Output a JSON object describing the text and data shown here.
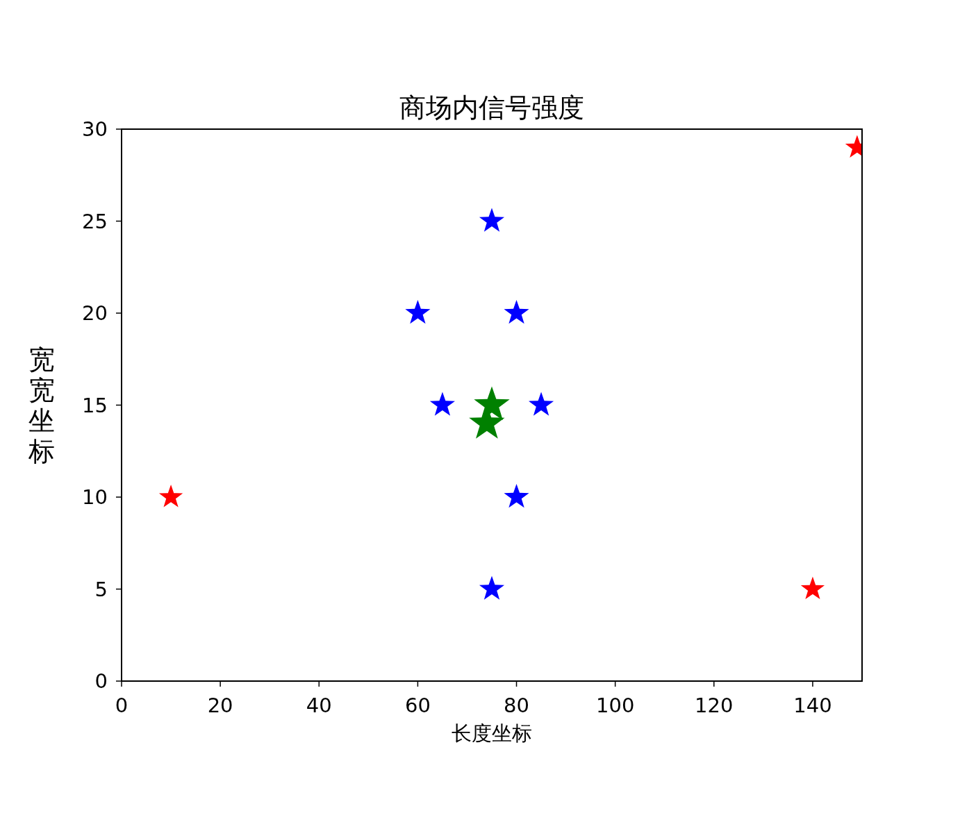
{
  "chart_data": {
    "type": "scatter",
    "title": "商场内信号强度",
    "xlabel": "长度坐标",
    "ylabel": "宽宽坐标",
    "marker": "star",
    "series": [
      {
        "color": "#0000ff",
        "x": [
          75,
          60,
          80,
          65,
          85,
          80,
          75
        ],
        "values": [
          25,
          20,
          20,
          15,
          15,
          10,
          5
        ]
      },
      {
        "color": "#ff0000",
        "x": [
          10,
          140,
          149
        ],
        "values": [
          10,
          5,
          29
        ]
      },
      {
        "color": "#008000",
        "x": [
          75,
          74
        ],
        "values": [
          15,
          14
        ]
      }
    ],
    "xlim": [
      0,
      150
    ],
    "ylim": [
      0,
      30
    ],
    "xticks": [
      0,
      20,
      40,
      60,
      80,
      100,
      120,
      140
    ],
    "yticks": [
      0,
      5,
      10,
      15,
      20,
      25,
      30
    ]
  }
}
